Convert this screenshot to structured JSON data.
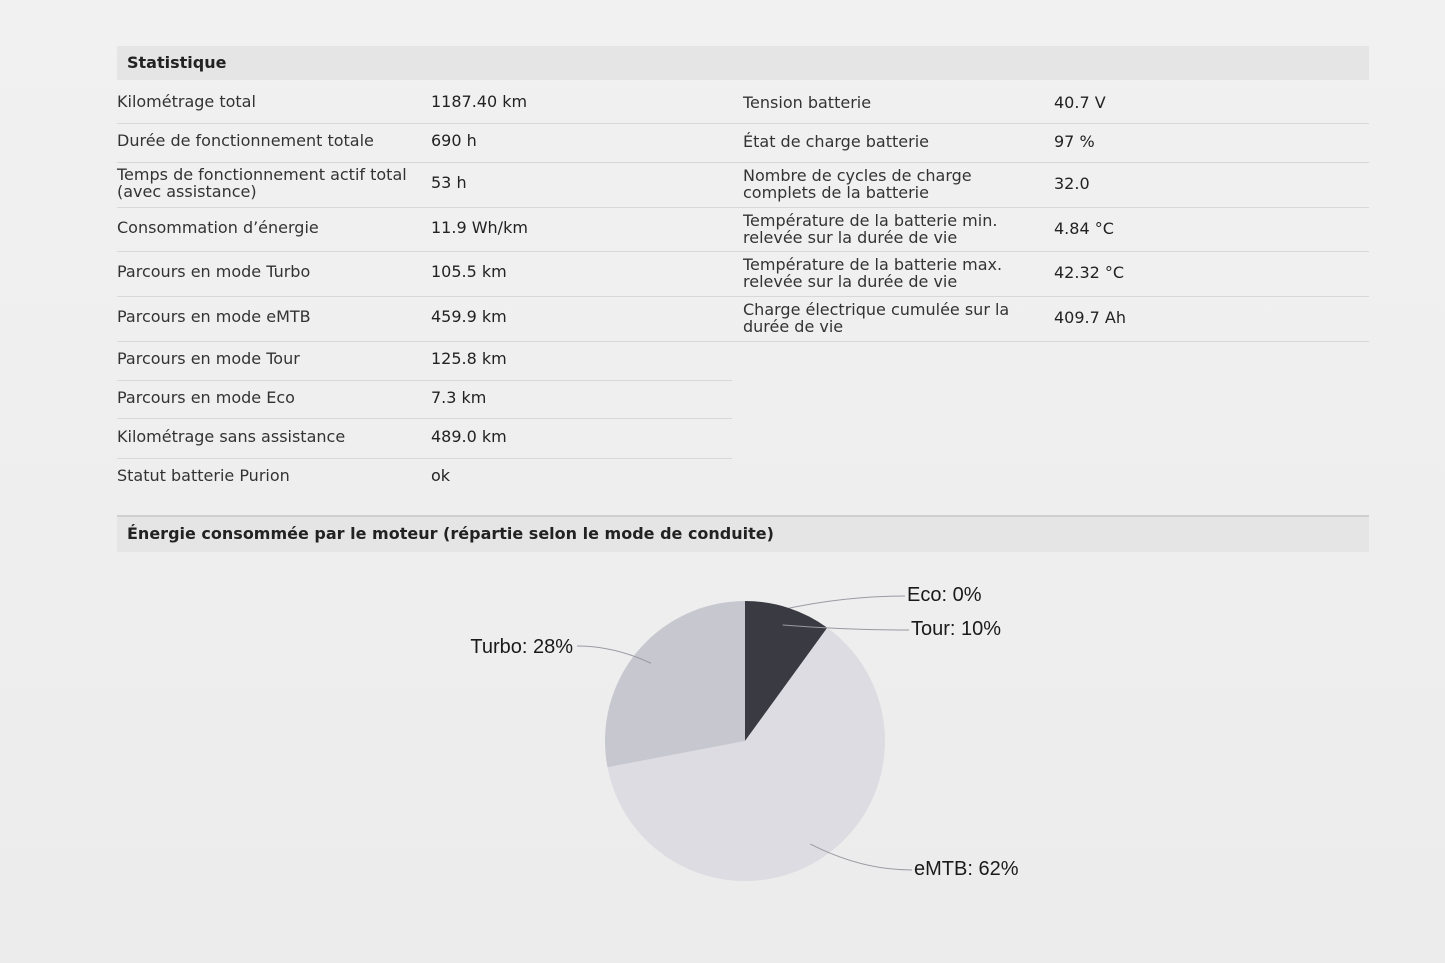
{
  "statistics": {
    "title": "Statistique",
    "left_rows": [
      {
        "label": "Kilométrage total",
        "value": "1187.40 km"
      },
      {
        "label": "Durée de fonctionnement totale",
        "value": "690 h"
      },
      {
        "label": "Temps de fonctionnement actif total (avec assistance)",
        "value": "53 h"
      },
      {
        "label": "Consommation d’énergie",
        "value": "11.9 Wh/km"
      },
      {
        "label": "Parcours en mode Turbo",
        "value": "105.5 km"
      },
      {
        "label": "Parcours en mode eMTB",
        "value": "459.9 km"
      },
      {
        "label": "Parcours en mode Tour",
        "value": "125.8 km"
      },
      {
        "label": "Parcours en mode Eco",
        "value": "7.3 km"
      },
      {
        "label": "Kilométrage sans assistance",
        "value": "489.0 km"
      },
      {
        "label": "Statut batterie Purion",
        "value": "ok"
      }
    ],
    "right_rows": [
      {
        "label": "Tension batterie",
        "value": "40.7 V"
      },
      {
        "label": "État de charge batterie",
        "value": "97 %"
      },
      {
        "label": "Nombre de cycles de charge complets de la batterie",
        "value": "32.0"
      },
      {
        "label": "Température de la batterie min. relevée sur la durée de vie",
        "value": "4.84 °C"
      },
      {
        "label": "Température de la batterie max. relevée sur la durée de vie",
        "value": "42.32 °C"
      },
      {
        "label": "Charge électrique cumulée sur la durée de vie",
        "value": "409.7 Ah"
      }
    ]
  },
  "energy": {
    "title": "Énergie consommée par le moteur (répartie selon le mode de conduite)"
  },
  "chart_data": {
    "type": "pie",
    "title": "",
    "slices": [
      {
        "name": "Eco",
        "value": 0,
        "label": "Eco: 0%",
        "color": "#3a3b42"
      },
      {
        "name": "Tour",
        "value": 10,
        "label": "Tour: 10%",
        "color": "#3a3b42"
      },
      {
        "name": "eMTB",
        "value": 62,
        "label": "eMTB: 62%",
        "color": "#dcdce2"
      },
      {
        "name": "Turbo",
        "value": 28,
        "label": "Turbo: 28%",
        "color": "#c7c7d0"
      }
    ],
    "start_angle_deg": 0,
    "direction": "clockwise"
  }
}
